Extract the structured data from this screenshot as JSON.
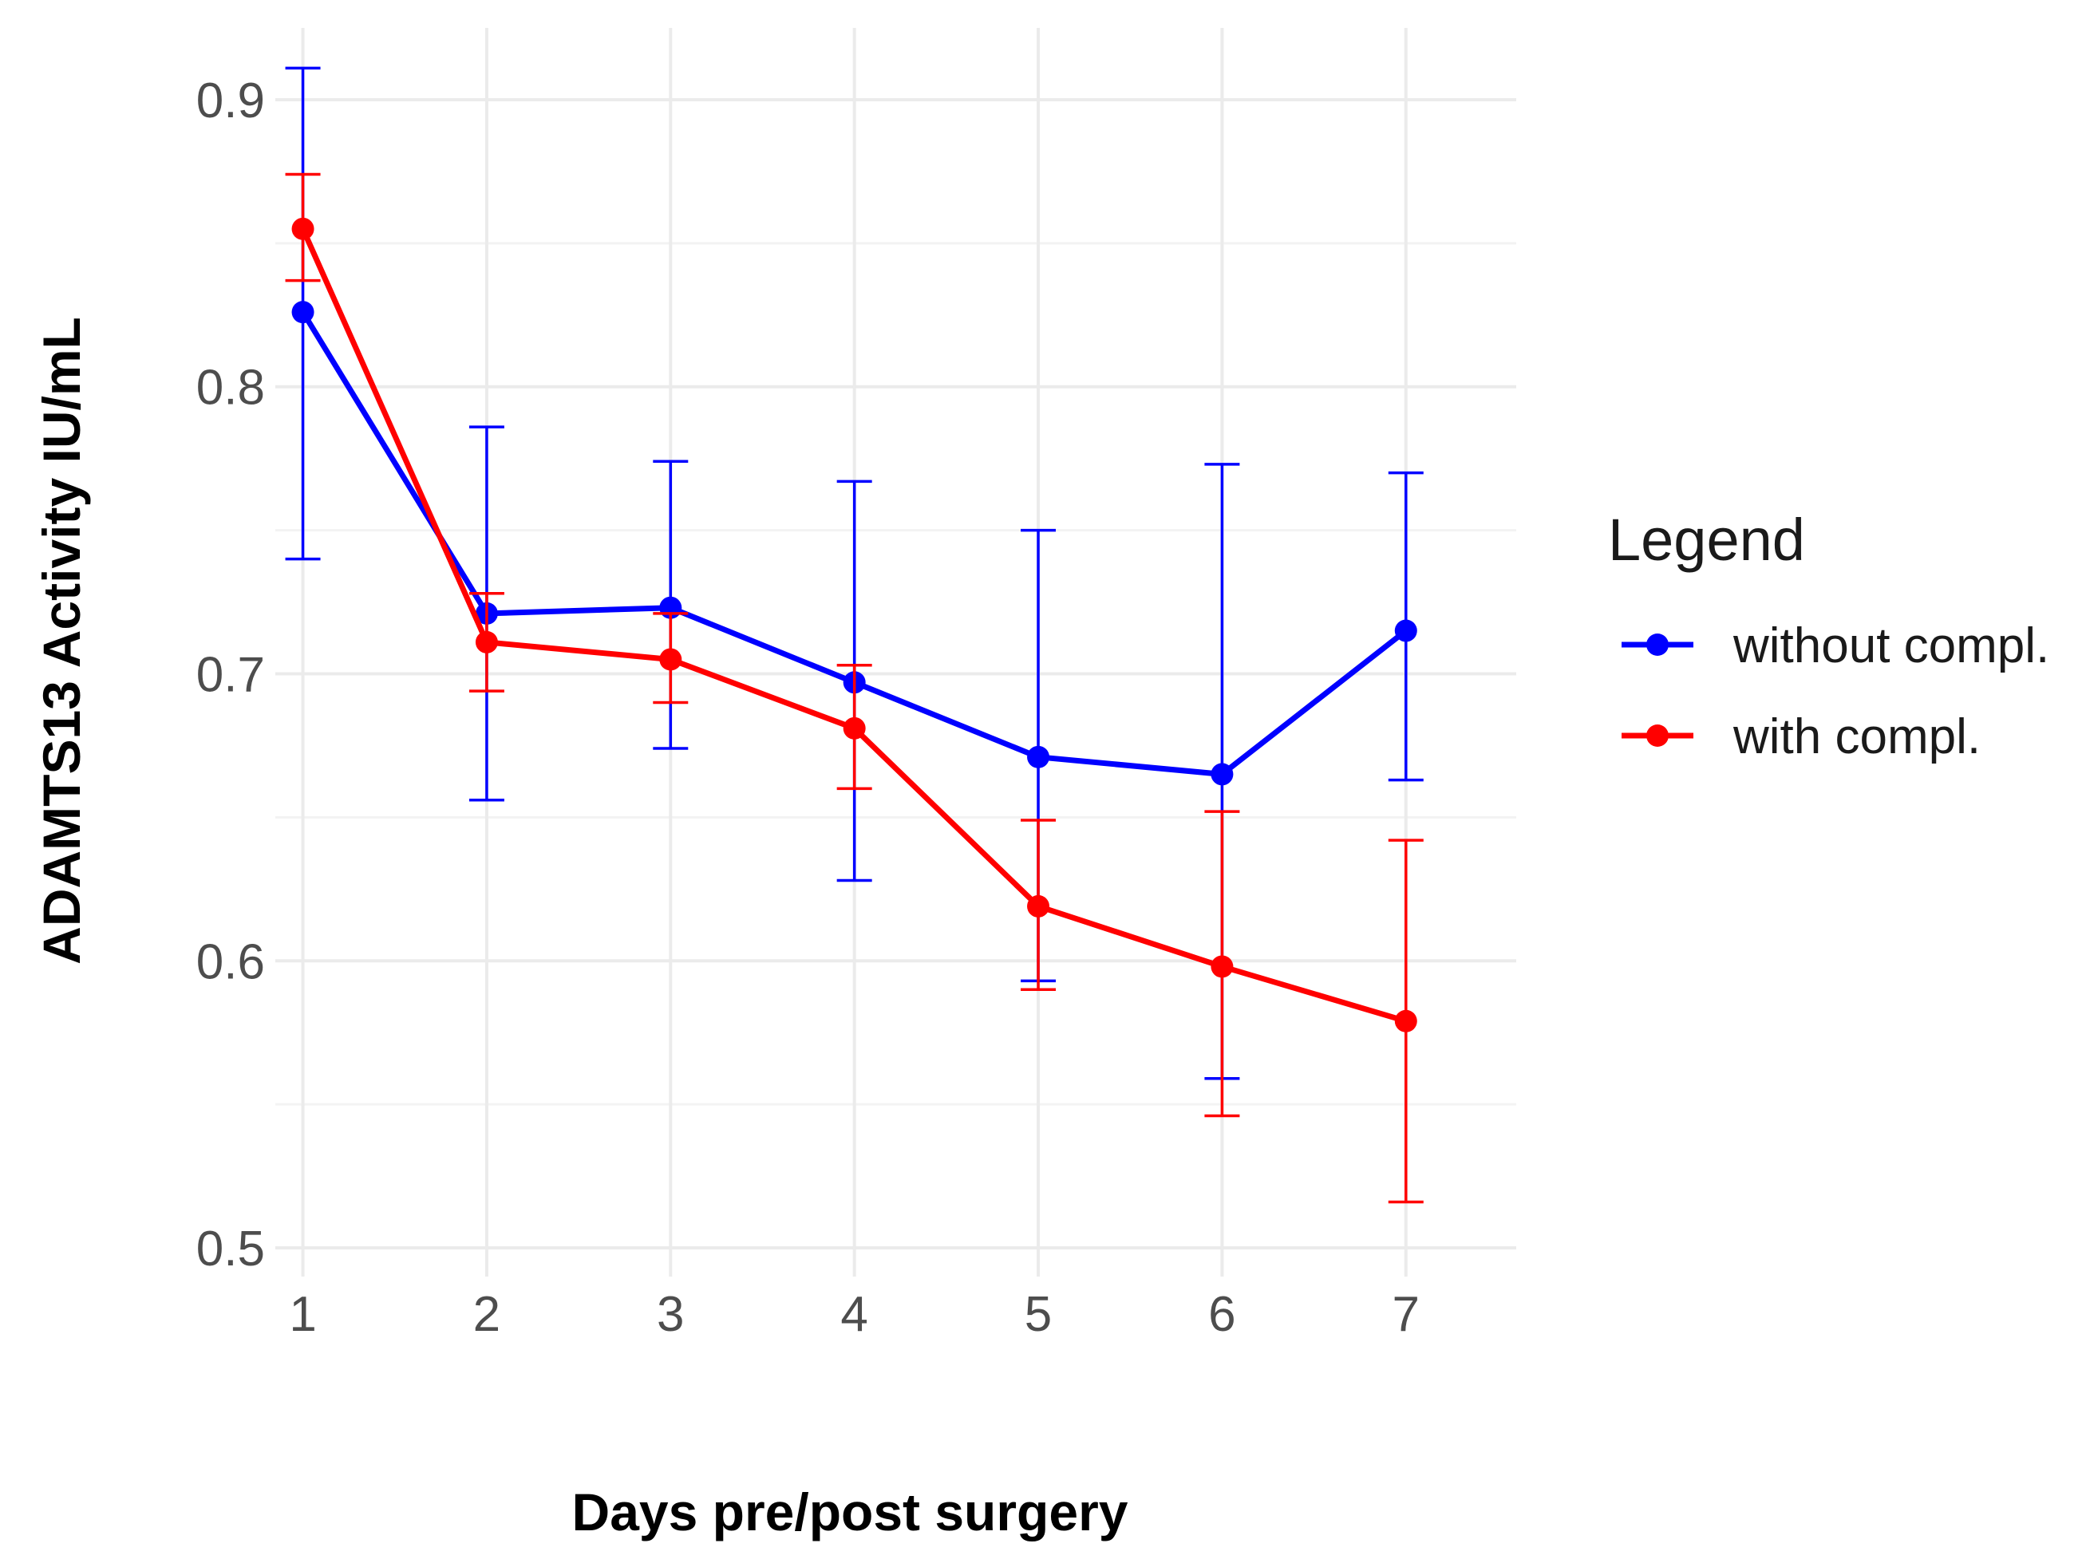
{
  "chart_data": {
    "type": "line",
    "title": "",
    "xlabel": "Days pre/post surgery",
    "ylabel": "ADAMTS13 Activity IU/mL",
    "x": [
      1,
      2,
      3,
      4,
      5,
      6,
      7
    ],
    "x_tick_labels": [
      "1",
      "2",
      "3",
      "4",
      "5",
      "6",
      "7"
    ],
    "y_ticks": [
      0.5,
      0.6,
      0.7,
      0.8,
      0.9
    ],
    "y_tick_labels": [
      "0.5",
      "0.6",
      "0.7",
      "0.8",
      "0.9"
    ],
    "xlim": [
      0.85,
      7.6
    ],
    "ylim": [
      0.49,
      0.925
    ],
    "grid": true,
    "legend": {
      "title": "Legend",
      "position": "right"
    },
    "series": [
      {
        "name": "without compl.",
        "color": "#0000ff",
        "values": [
          0.826,
          0.721,
          0.723,
          0.697,
          0.671,
          0.665,
          0.715
        ],
        "error_low": [
          0.74,
          0.656,
          0.674,
          0.628,
          0.593,
          0.559,
          0.663
        ],
        "error_high": [
          0.911,
          0.786,
          0.774,
          0.767,
          0.75,
          0.773,
          0.77
        ]
      },
      {
        "name": "with compl.",
        "color": "#ff0000",
        "values": [
          0.855,
          0.711,
          0.705,
          0.681,
          0.619,
          0.598,
          0.579
        ],
        "error_low": [
          0.837,
          0.694,
          0.69,
          0.66,
          0.59,
          0.546,
          0.516
        ],
        "error_high": [
          0.874,
          0.728,
          0.721,
          0.703,
          0.649,
          0.652,
          0.642
        ]
      }
    ]
  }
}
